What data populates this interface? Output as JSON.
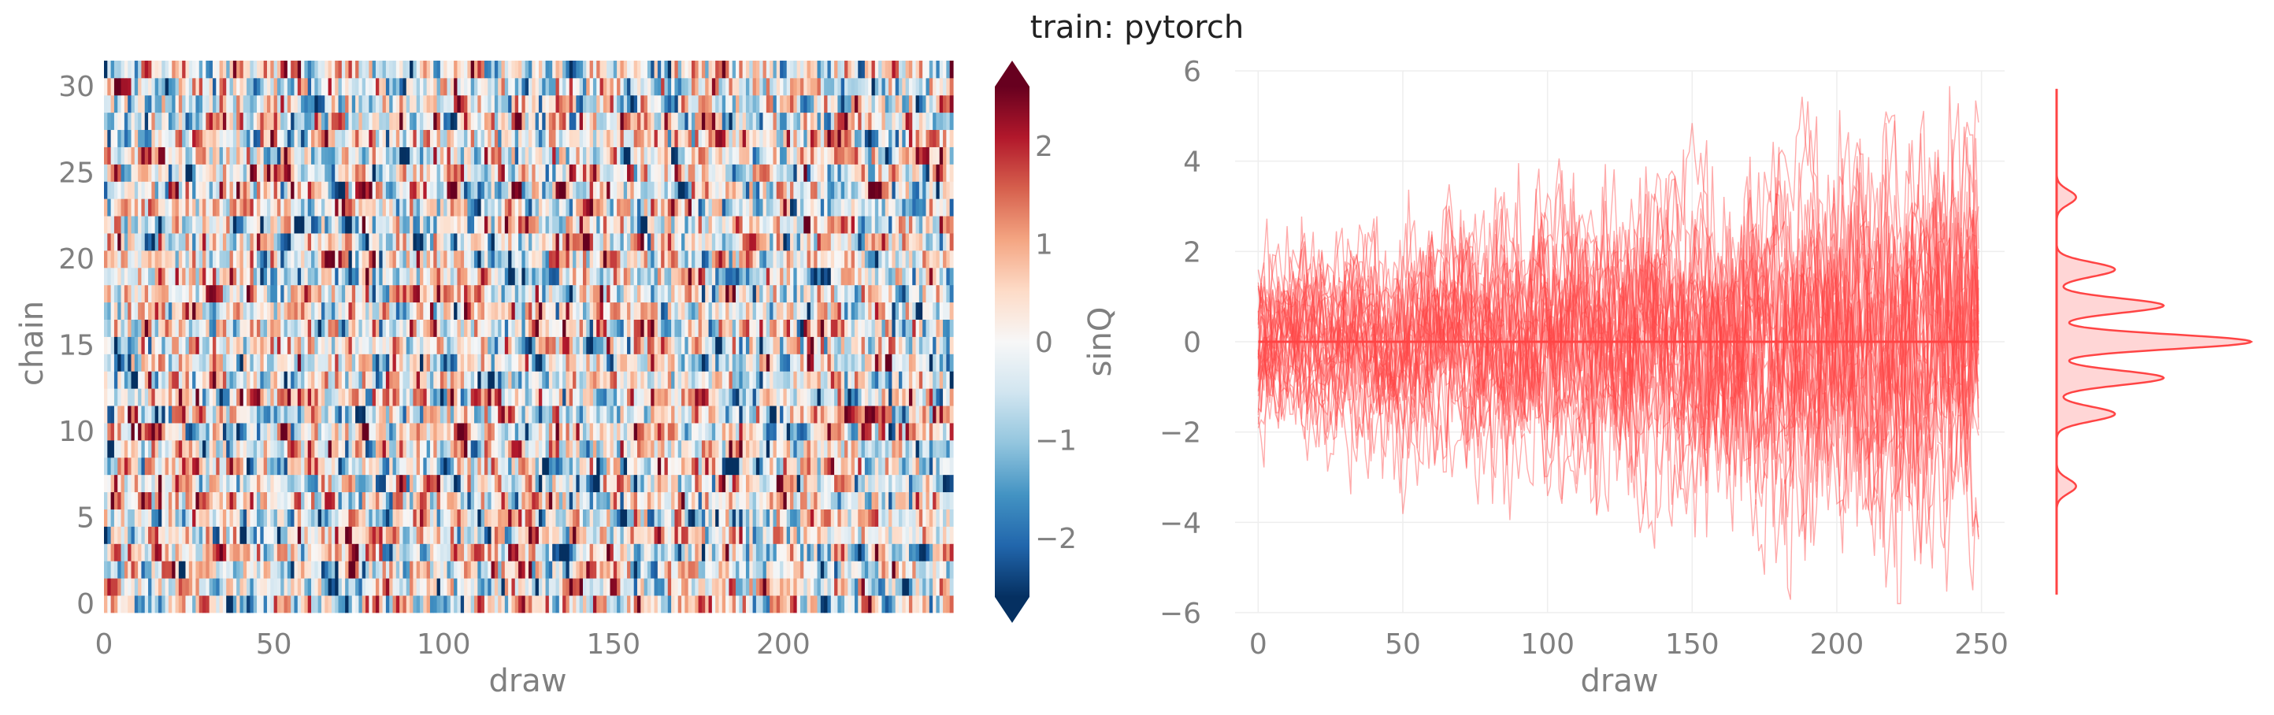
{
  "title": "train: pytorch",
  "chart_data": [
    {
      "type": "heatmap",
      "xlabel": "draw",
      "ylabel": "chain",
      "x_ticks": [
        "0",
        "50",
        "100",
        "150",
        "200"
      ],
      "y_ticks": [
        "0",
        "5",
        "10",
        "15",
        "20",
        "25",
        "30"
      ],
      "x_range": [
        0,
        250
      ],
      "y_range": [
        0,
        32
      ],
      "n_draws": 250,
      "n_chains": 32,
      "colorbar": {
        "label": "sinQ",
        "colormap": "RdBu_r",
        "range": [
          -2.6,
          2.6
        ],
        "ticks": [
          "2",
          "1",
          "0",
          "−1",
          "−2"
        ],
        "extend": "both"
      }
    },
    {
      "type": "line",
      "xlabel": "draw",
      "ylabel": "",
      "x_ticks": [
        "0",
        "50",
        "100",
        "150",
        "200",
        "250"
      ],
      "y_ticks": [
        "6",
        "4",
        "2",
        "0",
        "−2",
        "−4",
        "−6"
      ],
      "xlim": [
        -8,
        258
      ],
      "ylim": [
        -6,
        6
      ],
      "series_count": 32,
      "series_color": "#ff4444",
      "mean_line": 0.0,
      "grid": true,
      "marginal": {
        "type": "kde",
        "peaks_y": [
          -3.2,
          -1.6,
          -0.8,
          0,
          0.8,
          1.6,
          3.2
        ],
        "peak_heights": [
          0.1,
          0.3,
          0.55,
          1.0,
          0.55,
          0.3,
          0.1
        ],
        "color": "#ff4444",
        "fill": "#ffcccc"
      }
    }
  ]
}
